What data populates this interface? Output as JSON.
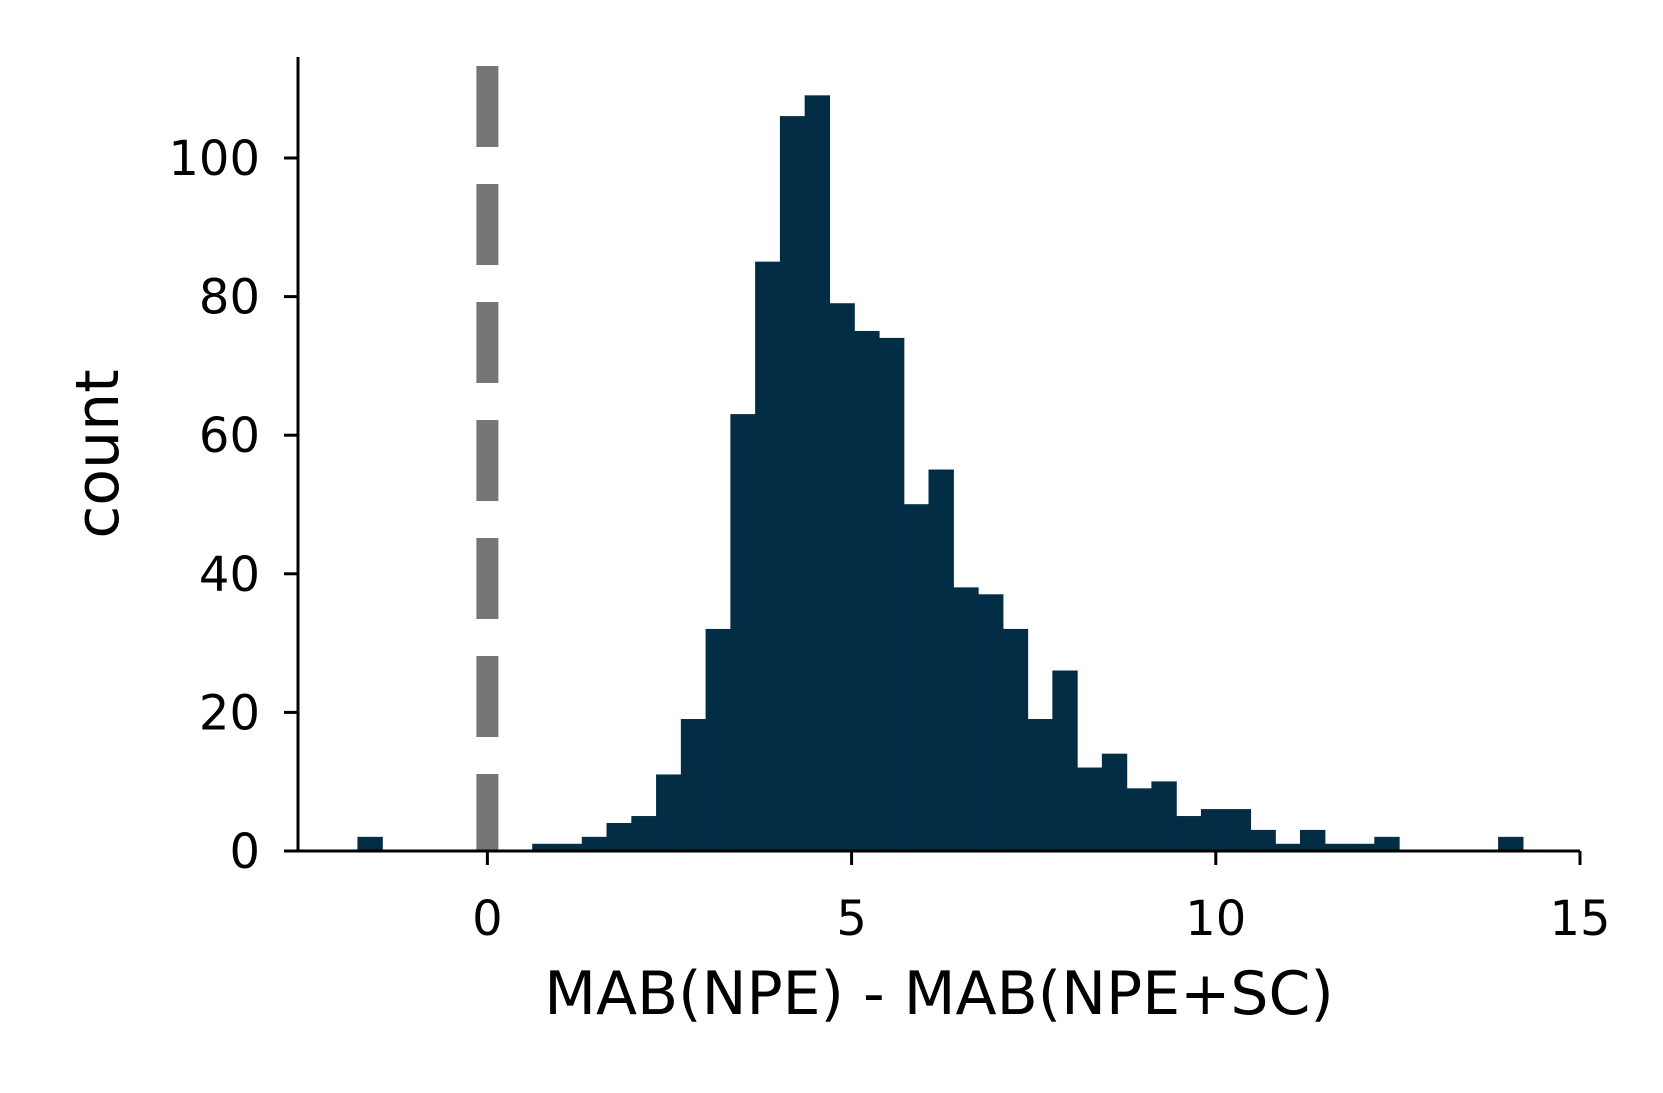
{
  "chart_data": {
    "type": "bar",
    "subtype": "histogram",
    "title": "",
    "xlabel": "MAB(NPE) - MAB(NPE+SC)",
    "ylabel": "count",
    "xlim": [
      -2.6,
      15
    ],
    "ylim": [
      0,
      115
    ],
    "xticks": [
      0,
      5,
      10,
      15
    ],
    "yticks": [
      0,
      20,
      40,
      60,
      80,
      100
    ],
    "grid": false,
    "legend": "none",
    "bin_width": 0.34,
    "bins": [
      {
        "x0": -1.78,
        "x1": -1.44,
        "count": 2
      },
      {
        "x0": 0.62,
        "x1": 0.96,
        "count": 1
      },
      {
        "x0": 0.96,
        "x1": 1.3,
        "count": 1
      },
      {
        "x0": 1.3,
        "x1": 1.64,
        "count": 2
      },
      {
        "x0": 1.64,
        "x1": 1.98,
        "count": 4
      },
      {
        "x0": 1.98,
        "x1": 2.32,
        "count": 5
      },
      {
        "x0": 2.32,
        "x1": 2.66,
        "count": 11
      },
      {
        "x0": 2.66,
        "x1": 3.0,
        "count": 19
      },
      {
        "x0": 3.0,
        "x1": 3.34,
        "count": 32
      },
      {
        "x0": 3.34,
        "x1": 3.68,
        "count": 63
      },
      {
        "x0": 3.68,
        "x1": 4.02,
        "count": 85
      },
      {
        "x0": 4.02,
        "x1": 4.36,
        "count": 106
      },
      {
        "x0": 4.36,
        "x1": 4.7,
        "count": 109
      },
      {
        "x0": 4.7,
        "x1": 5.04,
        "count": 79
      },
      {
        "x0": 5.04,
        "x1": 5.38,
        "count": 75
      },
      {
        "x0": 5.38,
        "x1": 5.72,
        "count": 74
      },
      {
        "x0": 5.72,
        "x1": 6.06,
        "count": 50
      },
      {
        "x0": 6.06,
        "x1": 6.4,
        "count": 55
      },
      {
        "x0": 6.4,
        "x1": 6.74,
        "count": 38
      },
      {
        "x0": 6.74,
        "x1": 7.08,
        "count": 37
      },
      {
        "x0": 7.08,
        "x1": 7.42,
        "count": 32
      },
      {
        "x0": 7.42,
        "x1": 7.76,
        "count": 19
      },
      {
        "x0": 7.76,
        "x1": 8.1,
        "count": 26
      },
      {
        "x0": 8.1,
        "x1": 8.44,
        "count": 12
      },
      {
        "x0": 8.44,
        "x1": 8.78,
        "count": 14
      },
      {
        "x0": 8.78,
        "x1": 9.12,
        "count": 9
      },
      {
        "x0": 9.12,
        "x1": 9.46,
        "count": 10
      },
      {
        "x0": 9.46,
        "x1": 9.8,
        "count": 5
      },
      {
        "x0": 9.8,
        "x1": 10.14,
        "count": 6
      },
      {
        "x0": 10.14,
        "x1": 10.48,
        "count": 6
      },
      {
        "x0": 10.48,
        "x1": 10.82,
        "count": 3
      },
      {
        "x0": 10.82,
        "x1": 11.16,
        "count": 1
      },
      {
        "x0": 11.16,
        "x1": 11.5,
        "count": 3
      },
      {
        "x0": 11.5,
        "x1": 11.84,
        "count": 1
      },
      {
        "x0": 11.84,
        "x1": 12.18,
        "count": 1
      },
      {
        "x0": 12.18,
        "x1": 12.52,
        "count": 2
      },
      {
        "x0": 13.88,
        "x1": 14.22,
        "count": 2
      }
    ],
    "reference_line": {
      "x": 0,
      "style": "dashed"
    },
    "colors": {
      "bars": "#022d45",
      "reference_line": "#767676",
      "axes": "#000000"
    }
  }
}
